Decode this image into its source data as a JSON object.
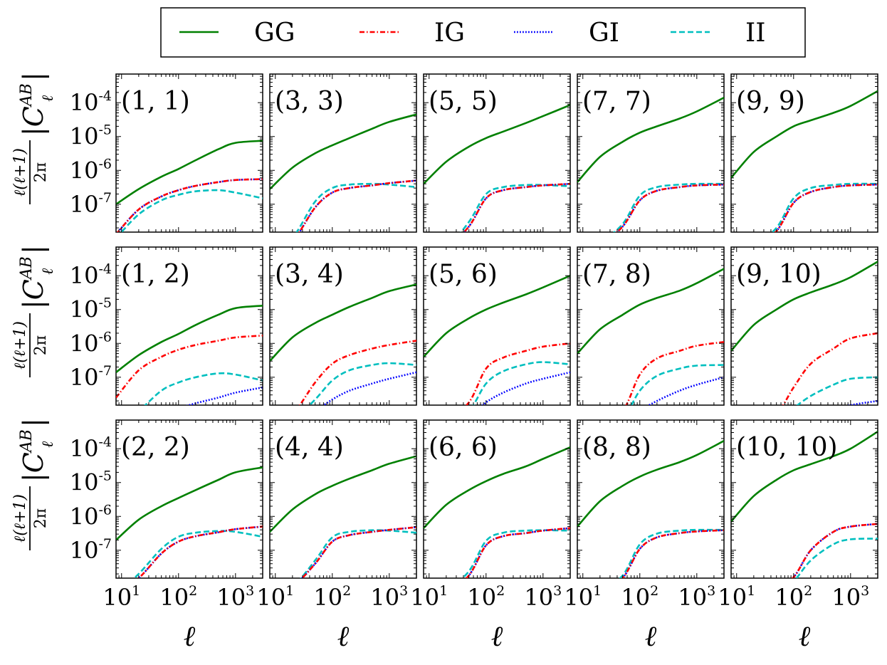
{
  "chart_data": {
    "type": "line",
    "layout": "grid of 3 rows x 5 columns, log-log axes",
    "legend": {
      "placement": "top-center",
      "entries": [
        {
          "key": "GG",
          "label": "GG",
          "color": "#008000",
          "dash": "solid"
        },
        {
          "key": "IG",
          "label": "IG",
          "color": "#ff0000",
          "dash": "dashdot"
        },
        {
          "key": "GI",
          "label": "GI",
          "color": "#0000ff",
          "dash": "dotted"
        },
        {
          "key": "II",
          "label": "II",
          "color": "#00bfbf",
          "dash": "dashed"
        }
      ]
    },
    "xlabel": "ℓ",
    "ylabel_parts": {
      "prefix": "ℓ(ℓ+1)",
      "denominator": "2π",
      "symbol": "|C",
      "superscript": "AB",
      "subscript": "ℓ",
      "suffix": "|"
    },
    "xlim": [
      8,
      3000
    ],
    "ylim": [
      1.5e-08,
      0.0007
    ],
    "xticks": [
      {
        "value": 10,
        "label": "10"
      },
      {
        "value": 100,
        "label": "10"
      },
      {
        "value": 1000,
        "label": "10"
      }
    ],
    "xtick_exponents": [
      "1",
      "2",
      "3"
    ],
    "yticks": [
      {
        "value": 1e-07,
        "label": "10",
        "exp": "-7"
      },
      {
        "value": 1e-06,
        "label": "10",
        "exp": "-6"
      },
      {
        "value": 1e-05,
        "label": "10",
        "exp": "-5"
      },
      {
        "value": 0.0001,
        "label": "10",
        "exp": "-4"
      }
    ],
    "x_samples": [
      8,
      20,
      50,
      100,
      200,
      500,
      1000,
      3000
    ],
    "panels": [
      {
        "label": "(1, 1)",
        "series": {
          "GG": [
            1e-07,
            2.8e-07,
            6.5e-07,
            1.1e-06,
            2e-06,
            4.2e-06,
            6.5e-06,
            7.5e-06
          ],
          "IG": [
            1.3e-08,
            7e-08,
            1.7e-07,
            2.6e-07,
            3.5e-07,
            4.5e-07,
            5.2e-07,
            5.5e-07
          ],
          "GI": [
            1.3e-08,
            7e-08,
            1.7e-07,
            2.6e-07,
            3.5e-07,
            4.5e-07,
            5.2e-07,
            5.5e-07
          ],
          "II": [
            1e-08,
            5e-08,
            1.3e-07,
            1.9e-07,
            2.4e-07,
            2.6e-07,
            2.2e-07,
            1.5e-07
          ]
        }
      },
      {
        "label": "(3, 3)",
        "series": {
          "GG": [
            2.8e-07,
            1.2e-06,
            3.2e-06,
            5.5e-06,
            9e-06,
            1.7e-05,
            2.7e-05,
            4.5e-05
          ],
          "IG": [
            3e-09,
            8e-09,
            8e-08,
            2.2e-07,
            3e-07,
            3.6e-07,
            4.2e-07,
            5e-07
          ],
          "GI": [
            3e-09,
            8e-09,
            8e-08,
            2.2e-07,
            3e-07,
            3.6e-07,
            4.2e-07,
            5e-07
          ],
          "II": [
            3e-09,
            1e-08,
            1.2e-07,
            3e-07,
            3.8e-07,
            4e-07,
            3.8e-07,
            3.2e-07
          ]
        }
      },
      {
        "label": "(5, 5)",
        "series": {
          "GG": [
            4e-07,
            1.8e-06,
            5e-06,
            9e-06,
            1.4e-05,
            2.5e-05,
            4e-05,
            8.5e-05
          ],
          "IG": [
            2e-09,
            5e-09,
            2.2e-08,
            1.5e-07,
            2.6e-07,
            3.2e-07,
            3.6e-07,
            4e-07
          ],
          "GI": [
            2e-09,
            5e-09,
            2.2e-08,
            1.5e-07,
            2.6e-07,
            3.2e-07,
            3.6e-07,
            4e-07
          ],
          "II": [
            2e-09,
            5e-09,
            3e-08,
            2e-07,
            3.2e-07,
            3.7e-07,
            3.7e-07,
            3.4e-07
          ]
        }
      },
      {
        "label": "(7, 7)",
        "series": {
          "GG": [
            4.5e-07,
            2.5e-06,
            7e-06,
            1.3e-05,
            2e-05,
            3.4e-05,
            5.5e-05,
            0.00014
          ],
          "IG": [
            2e-09,
            6e-09,
            2.2e-08,
            1.3e-07,
            2.5e-07,
            3.2e-07,
            3.6e-07,
            3.8e-07
          ],
          "GI": [
            2e-09,
            6e-09,
            2.2e-08,
            1.3e-07,
            2.5e-07,
            3.2e-07,
            3.6e-07,
            3.8e-07
          ],
          "II": [
            2e-09,
            7e-09,
            2.6e-08,
            1.8e-07,
            3.2e-07,
            3.8e-07,
            4e-07,
            4e-07
          ]
        }
      },
      {
        "label": "(9, 9)",
        "series": {
          "GG": [
            6e-07,
            3.5e-06,
            1e-05,
            2e-05,
            3e-05,
            5e-05,
            8e-05,
            0.00022
          ],
          "IG": [
            2e-09,
            5e-09,
            1.6e-08,
            1.1e-07,
            2.3e-07,
            3.2e-07,
            3.6e-07,
            3.8e-07
          ],
          "GI": [
            2e-09,
            5e-09,
            1.6e-08,
            1.1e-07,
            2.3e-07,
            3.2e-07,
            3.6e-07,
            3.8e-07
          ],
          "II": [
            2e-09,
            6e-09,
            2e-08,
            1.5e-07,
            3e-07,
            3.7e-07,
            4e-07,
            4e-07
          ]
        }
      },
      {
        "label": "(1, 2)",
        "series": {
          "GG": [
            1.4e-07,
            4.5e-07,
            1.1e-06,
            1.9e-06,
            3.5e-06,
            7e-06,
            1.1e-05,
            1.3e-05
          ],
          "IG": [
            2.5e-08,
            1.6e-07,
            4e-07,
            6.5e-07,
            9e-07,
            1.2e-06,
            1.5e-06,
            1.7e-06
          ],
          "GI": [
            3e-09,
            5e-09,
            8e-09,
            1.2e-08,
            1.7e-08,
            2.5e-08,
            3.5e-08,
            5e-08
          ],
          "II": [
            3e-09,
            1e-08,
            4e-08,
            7e-08,
            1e-07,
            1.3e-07,
            1.2e-07,
            8e-08
          ]
        }
      },
      {
        "label": "(3, 4)",
        "series": {
          "GG": [
            3e-07,
            1.5e-06,
            4e-06,
            7e-06,
            1.2e-05,
            2.2e-05,
            3.5e-05,
            5.5e-05
          ],
          "IG": [
            3e-09,
            8e-09,
            7e-08,
            2.5e-07,
            4.5e-07,
            7e-07,
            9e-07,
            1.2e-06
          ],
          "GI": [
            2e-09,
            4e-09,
            1e-08,
            2.2e-08,
            4e-08,
            6.5e-08,
            9e-08,
            1.4e-07
          ],
          "II": [
            2e-09,
            5e-09,
            2.2e-08,
            8e-08,
            1.6e-07,
            2.3e-07,
            2.6e-07,
            2.3e-07
          ]
        }
      },
      {
        "label": "(5, 6)",
        "series": {
          "GG": [
            4e-07,
            2e-06,
            5.5e-06,
            1e-05,
            1.6e-05,
            2.8e-05,
            4.5e-05,
            0.0001
          ],
          "IG": [
            2e-09,
            5e-09,
            1.8e-08,
            1.8e-07,
            3.8e-07,
            6e-07,
            8e-07,
            1e-06
          ],
          "GI": [
            1e-09,
            3e-09,
            6e-09,
            1.8e-08,
            3.5e-08,
            6.5e-08,
            9e-08,
            1.4e-07
          ],
          "II": [
            1e-09,
            4e-09,
            1e-08,
            6.5e-08,
            1.5e-07,
            2.4e-07,
            2.8e-07,
            2.4e-07
          ]
        }
      },
      {
        "label": "(7, 8)",
        "series": {
          "GG": [
            5e-07,
            2.6e-06,
            7e-06,
            1.4e-05,
            2.2e-05,
            3.6e-05,
            6e-05,
            0.00016
          ],
          "IG": [
            1e-09,
            4e-09,
            1e-08,
            1.2e-07,
            3.6e-07,
            6e-07,
            8.5e-07,
            1.1e-06
          ],
          "GI": [
            1e-09,
            2e-09,
            4e-09,
            1e-08,
            2e-08,
            4e-08,
            6e-08,
            1e-07
          ],
          "II": [
            1e-09,
            3e-09,
            6e-09,
            4e-08,
            1.1e-07,
            1.8e-07,
            2.2e-07,
            2.3e-07
          ]
        }
      },
      {
        "label": "(9, 10)",
        "series": {
          "GG": [
            6e-07,
            3.5e-06,
            1e-05,
            2e-05,
            3.2e-05,
            5.5e-05,
            9e-05,
            0.00026
          ],
          "IG": [
            1e-09,
            3e-09,
            8e-09,
            5e-08,
            2.5e-07,
            7e-07,
            1.4e-06,
            2e-06
          ],
          "GI": [
            1e-09,
            1e-09,
            2e-09,
            4e-09,
            7e-09,
            1.1e-08,
            1.5e-08,
            2e-08
          ],
          "II": [
            1e-09,
            2e-09,
            4e-09,
            1.2e-08,
            2.8e-08,
            6e-08,
            9e-08,
            1e-07
          ]
        }
      },
      {
        "label": "(2, 2)",
        "series": {
          "GG": [
            2e-07,
            8e-07,
            2e-06,
            3.5e-06,
            6e-06,
            1.2e-05,
            2e-05,
            2.8e-05
          ],
          "IG": [
            5e-09,
            1.5e-08,
            8e-08,
            1.8e-07,
            2.6e-07,
            3.4e-07,
            4.2e-07,
            5e-07
          ],
          "GI": [
            5e-09,
            1.5e-08,
            8e-08,
            1.8e-07,
            2.6e-07,
            3.4e-07,
            4.2e-07,
            5e-07
          ],
          "II": [
            5e-09,
            2e-08,
            1.1e-07,
            2.5e-07,
            3.3e-07,
            3.7e-07,
            3.5e-07,
            2.5e-07
          ]
        }
      },
      {
        "label": "(4, 4)",
        "series": {
          "GG": [
            3.5e-07,
            1.6e-06,
            4.5e-06,
            8e-06,
            1.3e-05,
            2.3e-05,
            3.6e-05,
            6e-05
          ],
          "IG": [
            3e-09,
            8e-09,
            4e-08,
            1.8e-07,
            2.8e-07,
            3.5e-07,
            4e-07,
            4.8e-07
          ],
          "GI": [
            3e-09,
            8e-09,
            4e-08,
            1.8e-07,
            2.8e-07,
            3.5e-07,
            4e-07,
            4.8e-07
          ],
          "II": [
            3e-09,
            8e-09,
            5e-08,
            2.4e-07,
            3.5e-07,
            3.9e-07,
            3.8e-07,
            3.3e-07
          ]
        }
      },
      {
        "label": "(6, 6)",
        "series": {
          "GG": [
            4.5e-07,
            2.2e-06,
            6e-06,
            1.1e-05,
            1.8e-05,
            3e-05,
            5e-05,
            0.00011
          ],
          "IG": [
            2e-09,
            5e-09,
            1.8e-08,
            1.4e-07,
            2.6e-07,
            3.2e-07,
            3.8e-07,
            4.5e-07
          ],
          "GI": [
            2e-09,
            5e-09,
            1.8e-08,
            1.4e-07,
            2.6e-07,
            3.2e-07,
            3.8e-07,
            4.5e-07
          ],
          "II": [
            2e-09,
            6e-09,
            2.4e-08,
            1.9e-07,
            3.3e-07,
            3.8e-07,
            3.9e-07,
            3.8e-07
          ]
        }
      },
      {
        "label": "(8, 8)",
        "series": {
          "GG": [
            5e-07,
            2.8e-06,
            8e-06,
            1.5e-05,
            2.4e-05,
            4e-05,
            6.5e-05,
            0.00017
          ],
          "IG": [
            2e-09,
            5e-09,
            1.5e-08,
            1.1e-07,
            2.4e-07,
            3.2e-07,
            3.6e-07,
            3.9e-07
          ],
          "GI": [
            2e-09,
            5e-09,
            1.5e-08,
            1.1e-07,
            2.4e-07,
            3.2e-07,
            3.6e-07,
            3.9e-07
          ],
          "II": [
            2e-09,
            6e-09,
            1.8e-08,
            1.5e-07,
            3.1e-07,
            3.8e-07,
            4e-07,
            4e-07
          ]
        }
      },
      {
        "label": "(10, 10)",
        "series": {
          "GG": [
            7e-07,
            4e-06,
            1.2e-05,
            2.3e-05,
            3.5e-05,
            6e-05,
            0.0001,
            0.00032
          ],
          "IG": [
            1e-09,
            3e-09,
            8e-09,
            1.6e-08,
            1e-07,
            3.5e-07,
            5e-07,
            6e-07
          ],
          "GI": [
            1e-09,
            3e-09,
            8e-09,
            1.6e-08,
            1e-07,
            3.5e-07,
            5e-07,
            6e-07
          ],
          "II": [
            1e-09,
            2e-09,
            5e-09,
            1.2e-08,
            5e-08,
            1.5e-07,
            2.1e-07,
            2.2e-07
          ]
        }
      }
    ]
  }
}
